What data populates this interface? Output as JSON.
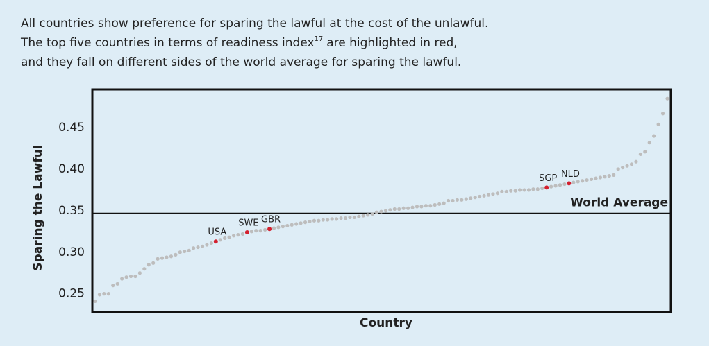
{
  "chart_data": {
    "type": "scatter",
    "title_line1": "All countries show preference for sparing the lawful at the cost of the unlawful.",
    "title_line2": "The top five countries in terms of readiness index",
    "title_line2_sup": "17",
    "title_line2_end": "are highlighted in red,",
    "title_line3": "and they fall on different sides of the world average for sparing the lawful.",
    "xlabel": "Country",
    "ylabel": "Sparing the Lawful",
    "categories": [
      null,
      null,
      null,
      null,
      null,
      null,
      null,
      null,
      null,
      null,
      null,
      null,
      null,
      null,
      null,
      null,
      null,
      null,
      null,
      null,
      null,
      null,
      null,
      null,
      null,
      null,
      null,
      "USA",
      null,
      null,
      null,
      null,
      null,
      null,
      "SWE",
      null,
      null,
      null,
      null,
      "GBR",
      null,
      null,
      null,
      null,
      null,
      null,
      null,
      null,
      null,
      null,
      null,
      null,
      null,
      null,
      null,
      null,
      null,
      null,
      null,
      null,
      null,
      null,
      null,
      null,
      null,
      null,
      null,
      null,
      null,
      null,
      null,
      null,
      null,
      null,
      null,
      null,
      null,
      null,
      null,
      null,
      null,
      null,
      null,
      null,
      null,
      null,
      null,
      null,
      null,
      null,
      null,
      null,
      null,
      null,
      null,
      null,
      null,
      null,
      null,
      null,
      null,
      "SGP",
      null,
      null,
      null,
      null,
      "NLD",
      null,
      null,
      null,
      null,
      null,
      null,
      null,
      null,
      null,
      null,
      null,
      null,
      null,
      null,
      null,
      null,
      null,
      null,
      null,
      null,
      null,
      null
    ],
    "values": [
      0.241,
      0.249,
      0.25,
      0.25,
      0.26,
      0.262,
      0.268,
      0.27,
      0.271,
      0.271,
      0.275,
      0.28,
      0.285,
      0.287,
      0.292,
      0.293,
      0.294,
      0.295,
      0.297,
      0.3,
      0.301,
      0.302,
      0.305,
      0.306,
      0.307,
      0.309,
      0.311,
      0.313,
      0.315,
      0.317,
      0.318,
      0.32,
      0.321,
      0.322,
      0.324,
      0.325,
      0.326,
      0.326,
      0.327,
      0.328,
      0.329,
      0.33,
      0.331,
      0.332,
      0.333,
      0.334,
      0.335,
      0.336,
      0.337,
      0.338,
      0.338,
      0.339,
      0.339,
      0.34,
      0.34,
      0.341,
      0.341,
      0.342,
      0.342,
      0.343,
      0.344,
      0.345,
      0.346,
      0.348,
      0.349,
      0.35,
      0.351,
      0.352,
      0.352,
      0.353,
      0.353,
      0.354,
      0.355,
      0.355,
      0.356,
      0.356,
      0.357,
      0.358,
      0.359,
      0.362,
      0.362,
      0.363,
      0.363,
      0.364,
      0.365,
      0.366,
      0.367,
      0.368,
      0.369,
      0.37,
      0.371,
      0.373,
      0.373,
      0.374,
      0.374,
      0.375,
      0.375,
      0.375,
      0.376,
      0.376,
      0.377,
      0.378,
      0.379,
      0.38,
      0.381,
      0.382,
      0.383,
      0.384,
      0.385,
      0.386,
      0.387,
      0.388,
      0.389,
      0.39,
      0.391,
      0.392,
      0.393,
      0.4,
      0.402,
      0.404,
      0.406,
      0.409,
      0.418,
      0.421,
      0.432,
      0.44,
      0.454,
      0.467,
      0.485
    ],
    "color": "#bdbdbd",
    "highlight_color": "#d3202e",
    "average": {
      "label": "World Average",
      "value": 0.347
    },
    "ylim": [
      0.228,
      0.496
    ],
    "yticks": [
      0.25,
      {
        "value": 0.3,
        "label": "0.30"
      },
      0.35,
      {
        "value": 0.4,
        "label": "0.40"
      },
      0.45
    ]
  }
}
